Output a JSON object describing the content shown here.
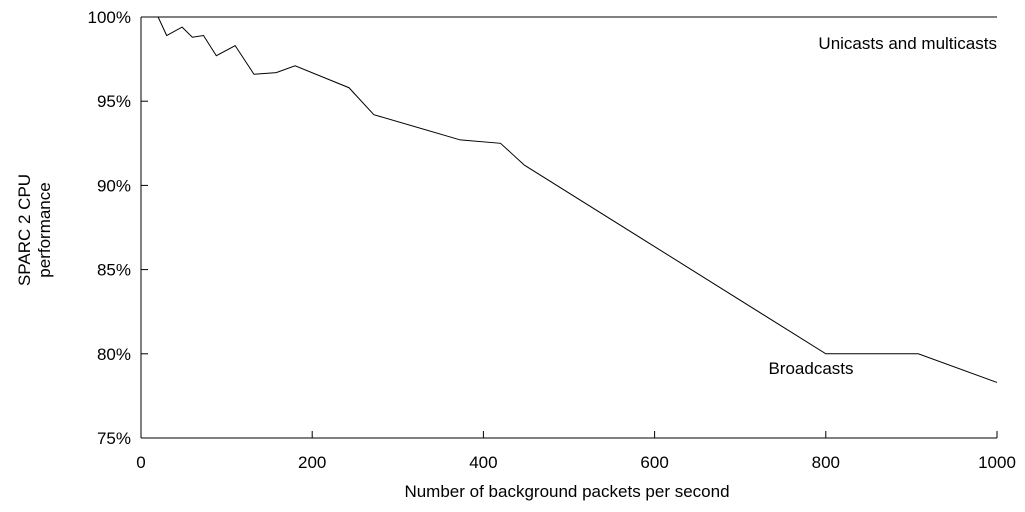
{
  "chart_data": {
    "type": "line",
    "title": "",
    "xlabel": "Number of background packets per second",
    "ylabel": [
      "SPARC 2 CPU",
      "performance"
    ],
    "xlim": [
      0,
      1000
    ],
    "ylim": [
      75,
      100
    ],
    "x_ticks": [
      0,
      200,
      400,
      600,
      800,
      1000
    ],
    "x_tick_labels": [
      "0",
      "200",
      "400",
      "600",
      "800",
      "1000"
    ],
    "y_ticks": [
      75,
      80,
      85,
      90,
      95,
      100
    ],
    "y_tick_labels": [
      "75%",
      "80%",
      "85%",
      "90%",
      "95%",
      "100%"
    ],
    "grid": false,
    "series": [
      {
        "name": "Unicasts and multicasts",
        "x": [
          0,
          1000
        ],
        "y": [
          100,
          100
        ]
      },
      {
        "name": "Broadcasts",
        "x": [
          0,
          20,
          30,
          48,
          60,
          73,
          88,
          110,
          132,
          158,
          180,
          243,
          272,
          373,
          420,
          448,
          800,
          908,
          1000
        ],
        "y": [
          100,
          100,
          98.9,
          99.4,
          98.8,
          98.9,
          97.7,
          98.3,
          96.6,
          96.7,
          97.1,
          95.8,
          94.2,
          92.7,
          92.5,
          91.2,
          80,
          80,
          78.3
        ]
      }
    ],
    "annotations": [
      "Unicasts and multicasts",
      "Broadcasts"
    ]
  }
}
